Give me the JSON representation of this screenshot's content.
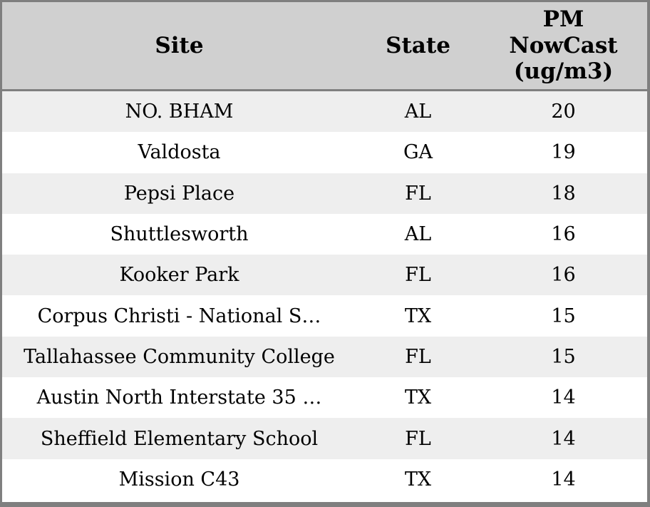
{
  "table": {
    "header": {
      "site": "Site",
      "state": "State",
      "pm": "PM\nNowCast\n(ug/m3)"
    }
  },
  "chart_data": {
    "type": "table",
    "title": "",
    "columns": [
      "Site",
      "State",
      "PM NowCast (ug/m3)"
    ],
    "rows": [
      [
        "NO. BHAM",
        "AL",
        20
      ],
      [
        "Valdosta",
        "GA",
        19
      ],
      [
        "Pepsi Place",
        "FL",
        18
      ],
      [
        "Shuttlesworth",
        "AL",
        16
      ],
      [
        "Kooker Park",
        "FL",
        16
      ],
      [
        "Corpus Christi - National S…",
        "TX",
        15
      ],
      [
        "Tallahassee Community College",
        "FL",
        15
      ],
      [
        "Austin North Interstate 35 …",
        "TX",
        14
      ],
      [
        "Sheffield Elementary School",
        "FL",
        14
      ],
      [
        "Mission C43",
        "TX",
        14
      ]
    ],
    "layout_hints": {
      "zebra_striping": true,
      "header_multiline_last_column": true
    }
  },
  "colors": {
    "header_background": "#d0d0d0",
    "border": "#7f7f7f",
    "row_stripe": "#eeeeee",
    "row_plain": "#ffffff",
    "text": "#000000"
  }
}
